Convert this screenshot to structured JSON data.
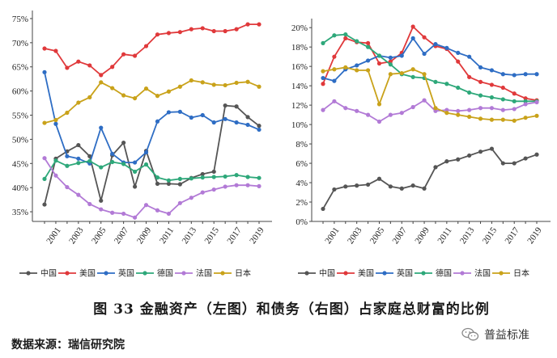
{
  "chart_data": [
    {
      "type": "line",
      "title": "金融资产",
      "x": [
        2000,
        2001,
        2002,
        2003,
        2004,
        2005,
        2006,
        2007,
        2008,
        2009,
        2010,
        2011,
        2012,
        2013,
        2014,
        2015,
        2016,
        2017,
        2018,
        2019
      ],
      "xticks": [
        "2001",
        "2003",
        "2005",
        "2007",
        "2009",
        "2011",
        "2013",
        "2015",
        "2017",
        "2019"
      ],
      "yticks": [
        "35%",
        "40%",
        "45%",
        "50%",
        "55%",
        "60%",
        "65%",
        "70%",
        "75%"
      ],
      "ylim": [
        33,
        76
      ],
      "series": [
        {
          "name": "中国",
          "color": "#555555",
          "values": [
            36.5,
            46.0,
            47.5,
            48.8,
            46.5,
            37.3,
            46.7,
            49.3,
            40.2,
            47.6,
            40.8,
            40.8,
            40.7,
            42.0,
            42.8,
            43.3,
            57.0,
            56.8,
            54.6,
            52.8
          ]
        },
        {
          "name": "美国",
          "color": "#e0393b",
          "values": [
            68.8,
            68.3,
            64.8,
            66.1,
            65.3,
            63.3,
            65.0,
            67.6,
            67.3,
            69.3,
            71.7,
            72.0,
            72.2,
            72.8,
            73.0,
            72.4,
            72.4,
            72.8,
            73.8,
            73.8
          ]
        },
        {
          "name": "英国",
          "color": "#2e6dc4",
          "values": [
            63.9,
            53.2,
            46.5,
            46.0,
            45.0,
            52.4,
            47.0,
            45.2,
            45.2,
            47.3,
            53.7,
            55.6,
            55.7,
            54.5,
            55.0,
            53.5,
            54.2,
            53.5,
            53.0,
            52.0
          ]
        },
        {
          "name": "德国",
          "color": "#2ea87a",
          "values": [
            41.8,
            45.6,
            44.5,
            45.1,
            45.5,
            44.2,
            45.3,
            44.9,
            43.3,
            44.8,
            42.1,
            41.5,
            41.8,
            41.9,
            42.1,
            42.2,
            42.3,
            42.6,
            42.2,
            42.0
          ]
        },
        {
          "name": "法国",
          "color": "#b27ad6",
          "values": [
            46.1,
            42.5,
            40.1,
            38.5,
            36.6,
            35.5,
            34.8,
            34.6,
            33.8,
            36.4,
            35.3,
            34.6,
            36.8,
            37.9,
            39.0,
            39.6,
            40.2,
            40.5,
            40.5,
            40.3
          ]
        },
        {
          "name": "日本",
          "color": "#c9a21a",
          "values": [
            53.4,
            54.0,
            55.5,
            57.6,
            58.7,
            61.8,
            60.6,
            59.1,
            58.5,
            60.5,
            59.0,
            59.9,
            60.9,
            62.2,
            61.8,
            61.3,
            61.2,
            61.7,
            61.9,
            60.9
          ]
        }
      ]
    },
    {
      "type": "line",
      "title": "债务",
      "x": [
        2000,
        2001,
        2002,
        2003,
        2004,
        2005,
        2006,
        2007,
        2008,
        2009,
        2010,
        2011,
        2012,
        2013,
        2014,
        2015,
        2016,
        2017,
        2018,
        2019
      ],
      "xticks": [
        "2001",
        "2003",
        "2005",
        "2007",
        "2009",
        "2011",
        "2013",
        "2015",
        "2017",
        "2019"
      ],
      "yticks": [
        "0%",
        "2%",
        "4%",
        "6%",
        "8%",
        "10%",
        "12%",
        "14%",
        "16%",
        "18%",
        "20%"
      ],
      "ylim": [
        0,
        20.6
      ],
      "series": [
        {
          "name": "中国",
          "color": "#555555",
          "values": [
            1.3,
            3.3,
            3.6,
            3.7,
            3.8,
            4.4,
            3.6,
            3.4,
            3.7,
            3.4,
            5.6,
            6.2,
            6.4,
            6.8,
            7.2,
            7.5,
            6.0,
            6.0,
            6.5,
            6.9
          ]
        },
        {
          "name": "美国",
          "color": "#e0393b",
          "values": [
            14.2,
            17.0,
            18.9,
            18.5,
            18.4,
            16.3,
            16.5,
            17.4,
            20.1,
            19.0,
            18.1,
            17.8,
            16.5,
            14.9,
            14.4,
            14.1,
            13.8,
            13.2,
            12.7,
            12.5
          ]
        },
        {
          "name": "英国",
          "color": "#2e6dc4",
          "values": [
            14.8,
            14.5,
            15.7,
            16.1,
            16.6,
            17.1,
            16.9,
            17.1,
            18.9,
            17.3,
            18.3,
            17.9,
            17.4,
            17.0,
            15.9,
            15.6,
            15.2,
            15.1,
            15.2,
            15.2
          ]
        },
        {
          "name": "德国",
          "color": "#2ea87a",
          "values": [
            18.4,
            19.2,
            19.3,
            18.6,
            18.0,
            17.1,
            16.2,
            15.2,
            14.9,
            14.8,
            14.4,
            14.2,
            13.8,
            13.3,
            13.0,
            12.8,
            12.6,
            12.4,
            12.4,
            12.4
          ]
        },
        {
          "name": "法国",
          "color": "#b27ad6",
          "values": [
            11.5,
            12.4,
            11.7,
            11.4,
            11.0,
            10.3,
            11.0,
            11.2,
            11.8,
            12.5,
            11.4,
            11.5,
            11.4,
            11.5,
            11.7,
            11.7,
            11.5,
            11.6,
            12.1,
            12.3
          ]
        },
        {
          "name": "日本",
          "color": "#c9a21a",
          "values": [
            15.5,
            15.7,
            15.9,
            15.6,
            15.6,
            12.1,
            15.2,
            15.3,
            15.7,
            15.2,
            11.7,
            11.2,
            11.0,
            10.8,
            10.6,
            10.5,
            10.5,
            10.4,
            10.7,
            10.9
          ]
        }
      ]
    }
  ],
  "caption": "图 33  金融资产（左图）和债务（右图）占家庭总财富的比例",
  "source": "数据来源：瑞信研究院",
  "brand": "普益标准"
}
